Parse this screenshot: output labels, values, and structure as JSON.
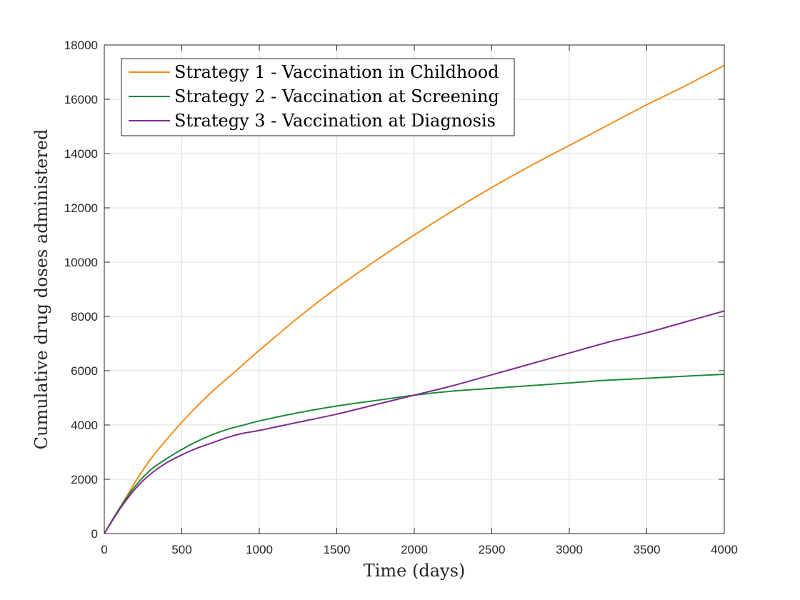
{
  "chart_data": {
    "type": "line",
    "title": "",
    "xlabel": "Time (days)",
    "ylabel": "Cumulative drug doses administered",
    "xlim": [
      0,
      4000
    ],
    "ylim": [
      0,
      18000
    ],
    "x_ticks": [
      0,
      500,
      1000,
      1500,
      2000,
      2500,
      3000,
      3500,
      4000
    ],
    "y_ticks": [
      0,
      2000,
      4000,
      6000,
      8000,
      10000,
      12000,
      14000,
      16000,
      18000
    ],
    "grid": true,
    "legend_position": "top-left",
    "x": [
      0,
      100,
      200,
      300,
      400,
      500,
      600,
      700,
      800,
      900,
      1000,
      1250,
      1500,
      1750,
      2000,
      2250,
      2500,
      2750,
      3000,
      3250,
      3500,
      3750,
      4000
    ],
    "series": [
      {
        "name": "Strategy 1 - Vaccination in Childhood",
        "color": "#f28e1c",
        "values": [
          0,
          950,
          1900,
          2750,
          3450,
          4100,
          4700,
          5250,
          5750,
          6250,
          6750,
          7950,
          9050,
          10050,
          11000,
          11900,
          12750,
          13550,
          14300,
          15050,
          15800,
          16500,
          17250
        ]
      },
      {
        "name": "Strategy 2 - Vaccination at Screening",
        "color": "#1f8a3c",
        "values": [
          0,
          950,
          1750,
          2350,
          2750,
          3100,
          3400,
          3650,
          3850,
          4000,
          4150,
          4450,
          4700,
          4900,
          5100,
          5250,
          5350,
          5450,
          5550,
          5650,
          5720,
          5800,
          5870
        ]
      },
      {
        "name": "Strategy 3 - Vaccination at Diagnosis",
        "color": "#7d2e8e",
        "values": [
          0,
          900,
          1650,
          2200,
          2600,
          2900,
          3150,
          3350,
          3550,
          3700,
          3800,
          4100,
          4400,
          4750,
          5100,
          5450,
          5850,
          6250,
          6650,
          7050,
          7400,
          7800,
          8200
        ]
      }
    ]
  }
}
